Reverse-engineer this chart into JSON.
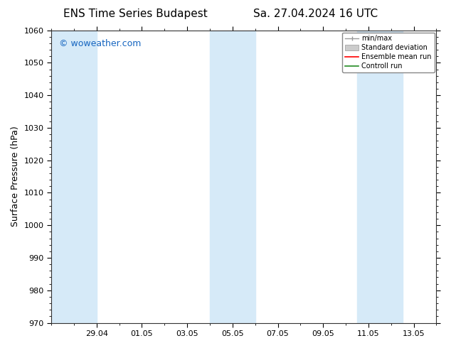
{
  "title_left": "ENS Time Series Budapest",
  "title_right": "Sa. 27.04.2024 16 UTC",
  "ylabel": "Surface Pressure (hPa)",
  "ylim": [
    970,
    1060
  ],
  "yticks": [
    970,
    980,
    990,
    1000,
    1010,
    1020,
    1030,
    1040,
    1050,
    1060
  ],
  "xlabel_ticks": [
    "29.04",
    "01.05",
    "03.05",
    "05.05",
    "07.05",
    "09.05",
    "11.05",
    "13.05"
  ],
  "xmin": 0,
  "xmax": 17,
  "watermark": "© woweather.com",
  "watermark_color": "#1565C0",
  "bg_color": "#ffffff",
  "plot_bg_color": "#ffffff",
  "shaded_bands": [
    {
      "xmin": 0.0,
      "xmax": 2.0,
      "color": "#d6eaf8"
    },
    {
      "xmin": 7.0,
      "xmax": 9.0,
      "color": "#d6eaf8"
    },
    {
      "xmin": 13.5,
      "xmax": 15.5,
      "color": "#d6eaf8"
    }
  ],
  "legend_labels": [
    "min/max",
    "Standard deviation",
    "Ensemble mean run",
    "Controll run"
  ],
  "legend_colors_line": [
    "#aaaaaa",
    "#bbbbbb",
    "#ff0000",
    "#008000"
  ],
  "font_family": "DejaVu Sans",
  "title_fontsize": 11,
  "tick_fontsize": 8,
  "ylabel_fontsize": 9,
  "legend_fontsize": 7
}
